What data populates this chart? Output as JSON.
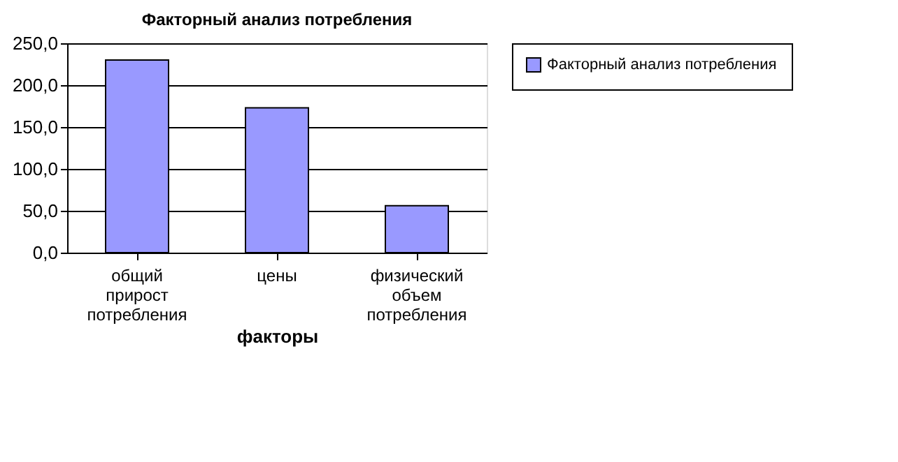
{
  "chart_data": {
    "type": "bar",
    "title": "Факторный анализ потребления",
    "xlabel": "факторы",
    "categories": [
      "общий прирост потребления",
      "цены",
      "физический объем потребления"
    ],
    "series": [
      {
        "name": "Факторный анализ потребления",
        "color": "#9999ff",
        "values": [
          230,
          173,
          56
        ]
      }
    ],
    "ylim": [
      0,
      250
    ],
    "yticks": [
      {
        "value": 0,
        "label": "0,0"
      },
      {
        "value": 50,
        "label": "50,0"
      },
      {
        "value": 100,
        "label": "100,0"
      },
      {
        "value": 150,
        "label": "150,0"
      },
      {
        "value": 200,
        "label": "200,0"
      },
      {
        "value": 250,
        "label": "250,0"
      }
    ],
    "grid": "y",
    "legend": "right"
  }
}
